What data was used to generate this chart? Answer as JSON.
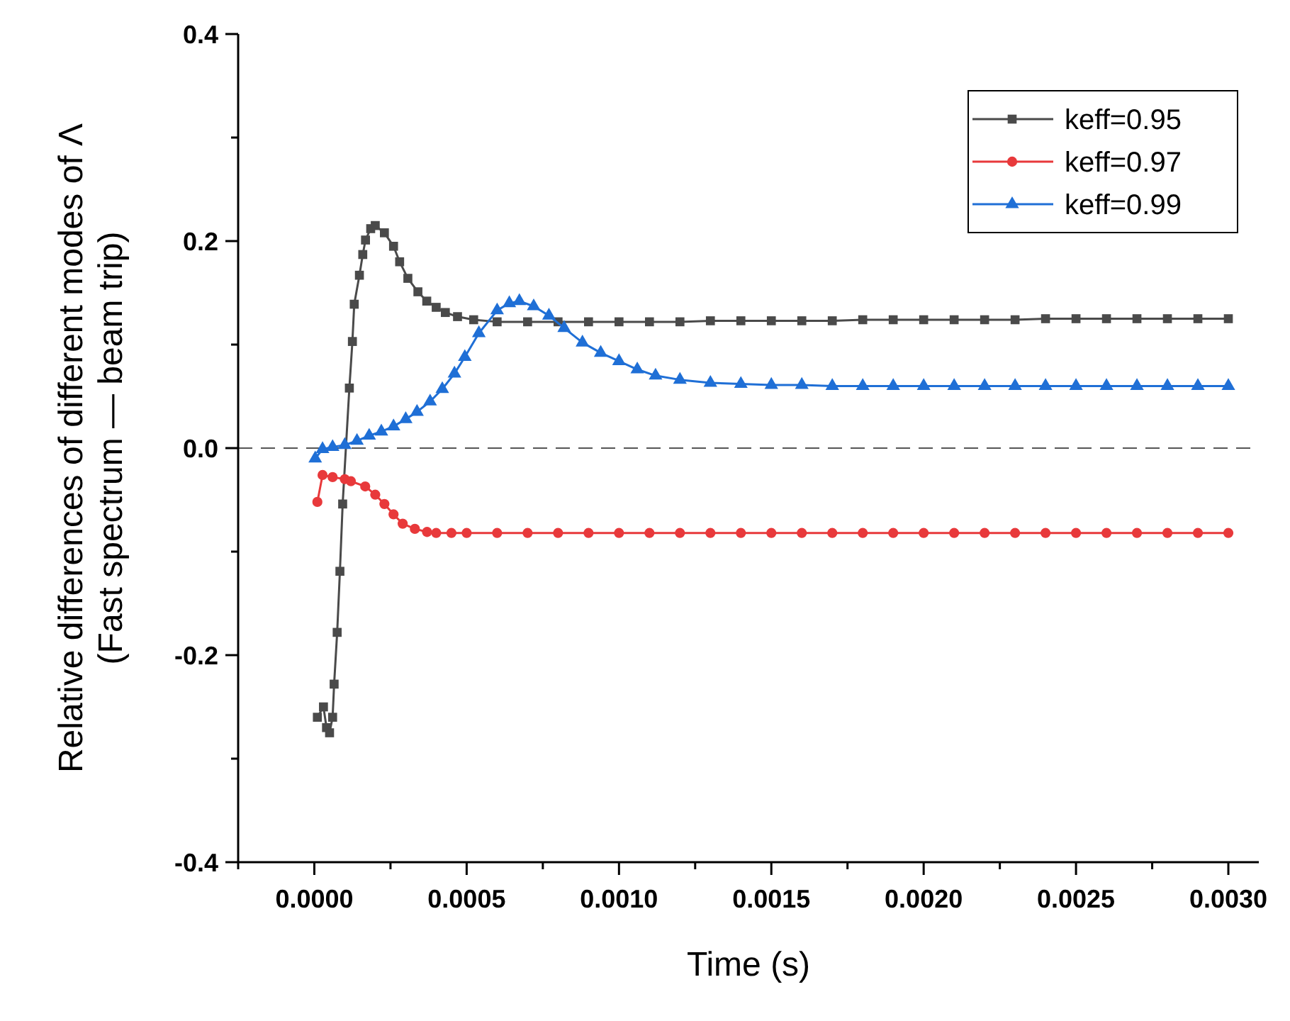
{
  "chart_data": {
    "type": "line",
    "xlabel": "Time (s)",
    "ylabel": "Relative differences of different modes of Λ\n(Fast spectrum — beam trip)",
    "xlim": [
      -0.00025,
      0.0031
    ],
    "ylim": [
      -0.4,
      0.4
    ],
    "xticks": [
      {
        "value": -0.00025,
        "label": null
      },
      {
        "value": 0,
        "label": "0.0000"
      },
      {
        "value": 0.00025,
        "label": null
      },
      {
        "value": 0.0005,
        "label": "0.0005"
      },
      {
        "value": 0.00075,
        "label": null
      },
      {
        "value": 0.001,
        "label": "0.0010"
      },
      {
        "value": 0.00125,
        "label": null
      },
      {
        "value": 0.0015,
        "label": "0.0015"
      },
      {
        "value": 0.00175,
        "label": null
      },
      {
        "value": 0.002,
        "label": "0.0020"
      },
      {
        "value": 0.00225,
        "label": null
      },
      {
        "value": 0.0025,
        "label": "0.0025"
      },
      {
        "value": 0.00275,
        "label": null
      },
      {
        "value": 0.003,
        "label": "0.0030"
      }
    ],
    "yticks": [
      {
        "value": -0.4,
        "label": "-0.4"
      },
      {
        "value": -0.3,
        "label": null
      },
      {
        "value": -0.2,
        "label": "-0.2"
      },
      {
        "value": -0.1,
        "label": null
      },
      {
        "value": 0,
        "label": "0.0"
      },
      {
        "value": 0.1,
        "label": null
      },
      {
        "value": 0.2,
        "label": "0.2"
      },
      {
        "value": 0.3,
        "label": null
      },
      {
        "value": 0.4,
        "label": "0.4"
      }
    ],
    "grid": false,
    "legend": "top right",
    "line_style": "solid",
    "ref_lines": [
      {
        "axis": "y",
        "value": 0,
        "line_style": "dashed",
        "color": "#555555"
      }
    ],
    "series": [
      {
        "name": "keff=0.95",
        "color": "#4a4a4a",
        "marker": "square",
        "x": [
          1e-05,
          3e-05,
          4e-05,
          5e-05,
          6e-05,
          6.5e-05,
          7.5e-05,
          8.4e-05,
          9.3e-05,
          0.000115,
          0.000125,
          0.000131,
          0.000148,
          0.000159,
          0.000168,
          0.000185,
          0.0002,
          0.00023,
          0.00026,
          0.00028,
          0.000307,
          0.00034,
          0.000369,
          0.0004,
          0.00043,
          0.00047,
          0.000523,
          0.0006,
          0.0007,
          0.0008,
          0.0009,
          0.001,
          0.0011,
          0.0012,
          0.0013,
          0.0014,
          0.0015,
          0.0016,
          0.0017,
          0.0018,
          0.0019,
          0.002,
          0.0021,
          0.0022,
          0.0023,
          0.0024,
          0.0025,
          0.0026,
          0.0027,
          0.0028,
          0.0029,
          0.003
        ],
        "values": [
          -0.26,
          -0.25,
          -0.27,
          -0.275,
          -0.26,
          -0.228,
          -0.178,
          -0.119,
          -0.054,
          0.058,
          0.103,
          0.139,
          0.167,
          0.187,
          0.201,
          0.212,
          0.215,
          0.208,
          0.195,
          0.18,
          0.164,
          0.151,
          0.142,
          0.136,
          0.131,
          0.127,
          0.124,
          0.122,
          0.122,
          0.122,
          0.122,
          0.122,
          0.122,
          0.122,
          0.123,
          0.123,
          0.123,
          0.123,
          0.123,
          0.124,
          0.124,
          0.124,
          0.124,
          0.124,
          0.124,
          0.125,
          0.125,
          0.125,
          0.125,
          0.125,
          0.125,
          0.125
        ]
      },
      {
        "name": "keff=0.97",
        "color": "#e8393b",
        "marker": "circle",
        "x": [
          1e-05,
          2.7e-05,
          6e-05,
          0.0001,
          0.00012,
          0.000167,
          0.0002,
          0.00023,
          0.00026,
          0.00029,
          0.00033,
          0.00037,
          0.0004,
          0.00045,
          0.0005,
          0.0006,
          0.0007,
          0.0008,
          0.0009,
          0.001,
          0.0011,
          0.0012,
          0.0013,
          0.0014,
          0.0015,
          0.0016,
          0.0017,
          0.0018,
          0.0019,
          0.002,
          0.0021,
          0.0022,
          0.0023,
          0.0024,
          0.0025,
          0.0026,
          0.0027,
          0.0028,
          0.0029,
          0.003
        ],
        "values": [
          -0.052,
          -0.026,
          -0.028,
          -0.03,
          -0.032,
          -0.037,
          -0.045,
          -0.054,
          -0.064,
          -0.073,
          -0.078,
          -0.081,
          -0.082,
          -0.082,
          -0.082,
          -0.082,
          -0.082,
          -0.082,
          -0.082,
          -0.082,
          -0.082,
          -0.082,
          -0.082,
          -0.082,
          -0.082,
          -0.082,
          -0.082,
          -0.082,
          -0.082,
          -0.082,
          -0.082,
          -0.082,
          -0.082,
          -0.082,
          -0.082,
          -0.082,
          -0.082,
          -0.082,
          -0.082,
          -0.082
        ]
      },
      {
        "name": "keff=0.99",
        "color": "#1f6fd6",
        "marker": "triangle",
        "x": [
          3e-06,
          2.7e-05,
          6e-05,
          0.0001,
          0.00014,
          0.00018,
          0.00022,
          0.00026,
          0.0003,
          0.000337,
          0.00038,
          0.00042,
          0.00046,
          0.000494,
          0.00054,
          0.0006,
          0.00064,
          0.000673,
          0.00072,
          0.00077,
          0.00082,
          0.00088,
          0.00094,
          0.001,
          0.00106,
          0.00112,
          0.0012,
          0.0013,
          0.0014,
          0.0015,
          0.0016,
          0.0017,
          0.0018,
          0.0019,
          0.002,
          0.0021,
          0.0022,
          0.0023,
          0.0024,
          0.0025,
          0.0026,
          0.0027,
          0.0028,
          0.0029,
          0.003
        ],
        "values": [
          -0.01,
          -0.001,
          0.001,
          0.003,
          0.007,
          0.012,
          0.016,
          0.021,
          0.028,
          0.035,
          0.045,
          0.057,
          0.072,
          0.088,
          0.111,
          0.133,
          0.14,
          0.142,
          0.137,
          0.128,
          0.116,
          0.102,
          0.092,
          0.084,
          0.076,
          0.07,
          0.066,
          0.063,
          0.062,
          0.061,
          0.061,
          0.06,
          0.06,
          0.06,
          0.06,
          0.06,
          0.06,
          0.06,
          0.06,
          0.06,
          0.06,
          0.06,
          0.06,
          0.06,
          0.06
        ]
      }
    ]
  }
}
